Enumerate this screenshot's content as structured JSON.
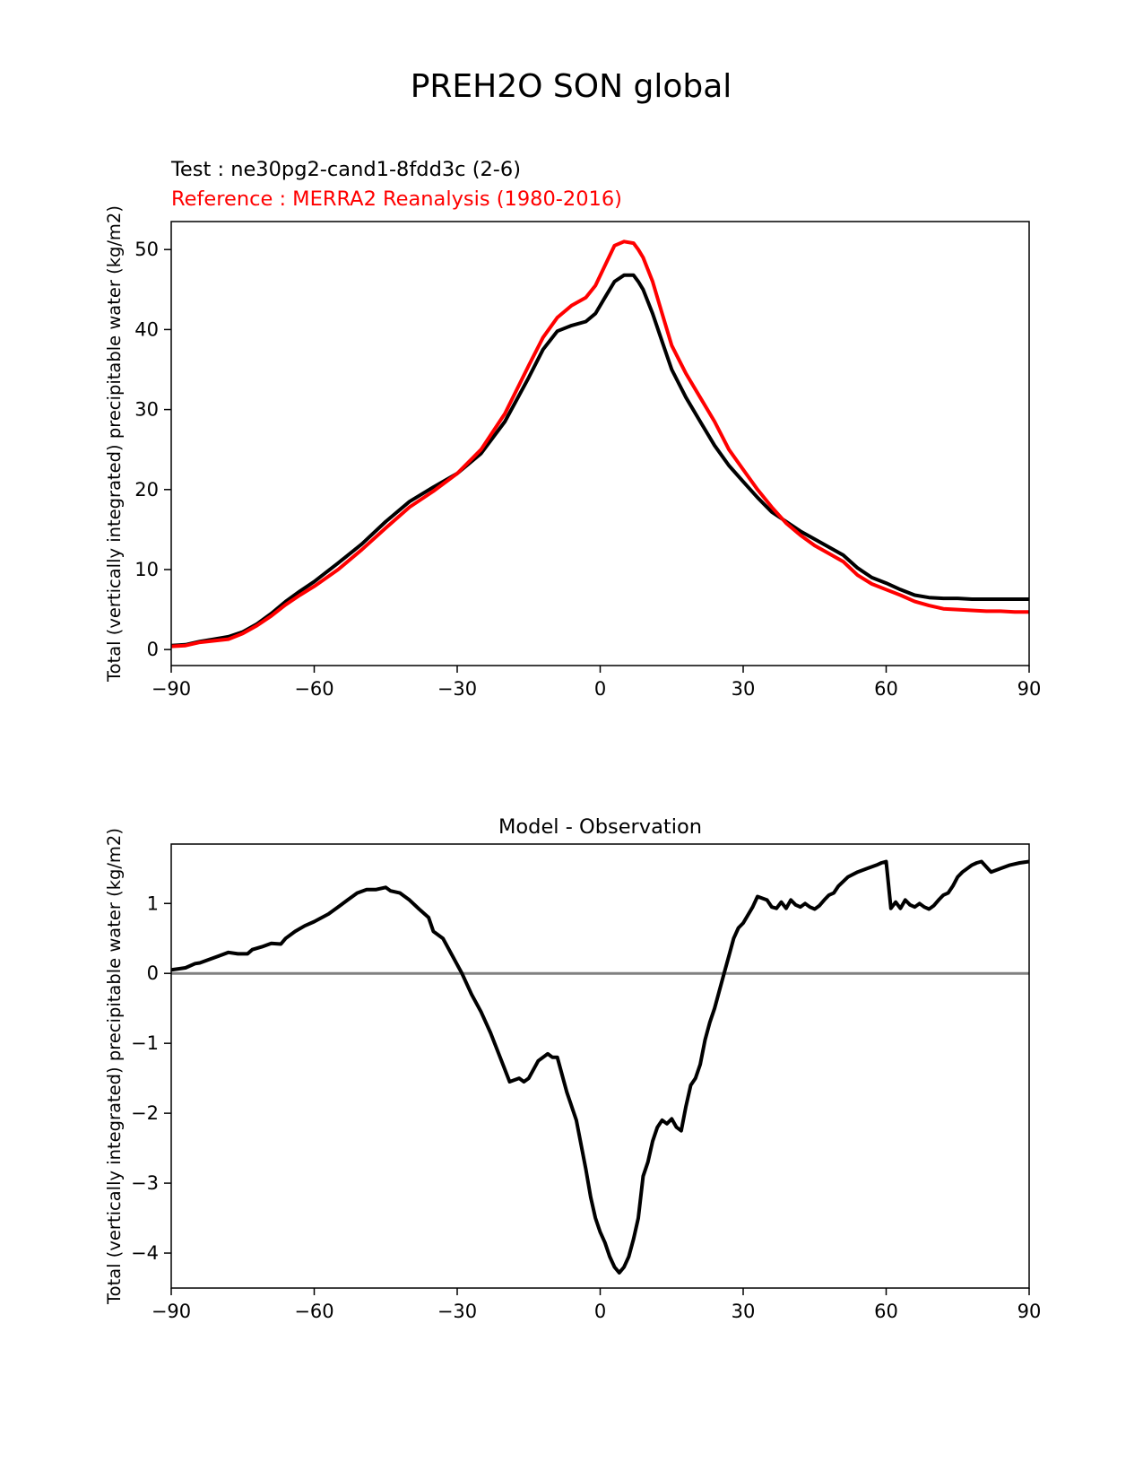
{
  "figure": {
    "title": "PREH2O SON global"
  },
  "chart_data": [
    {
      "type": "line",
      "panel": "top",
      "test_label": "Test : ne30pg2-cand1-8fdd3c (2-6)",
      "reference_label": "Reference : MERRA2 Reanalysis (1980-2016)",
      "xlabel": "",
      "ylabel": "Total (vertically integrated) precipitable water (kg/m2)",
      "xlim": [
        -90,
        90
      ],
      "ylim": [
        -2,
        53.5
      ],
      "xticks": [
        -90,
        -60,
        -30,
        0,
        30,
        60,
        90
      ],
      "xtick_labels": [
        "−90",
        "−60",
        "−30",
        "0",
        "30",
        "60",
        "90"
      ],
      "yticks": [
        0,
        10,
        20,
        30,
        40,
        50
      ],
      "ytick_labels": [
        "0",
        "10",
        "20",
        "30",
        "40",
        "50"
      ],
      "series": [
        {
          "name": "Test",
          "color": "#000000",
          "x": [
            -90,
            -87,
            -84,
            -81,
            -78,
            -75,
            -72,
            -69,
            -66,
            -63,
            -60,
            -55,
            -50,
            -45,
            -40,
            -35,
            -30,
            -25,
            -20,
            -15,
            -12,
            -9,
            -6,
            -3,
            -1,
            1,
            3,
            5,
            7,
            8,
            9,
            11,
            13,
            15,
            18,
            21,
            24,
            27,
            30,
            33,
            36,
            39,
            42,
            45,
            48,
            51,
            54,
            57,
            60,
            63,
            66,
            69,
            72,
            75,
            78,
            81,
            84,
            87,
            90
          ],
          "y": [
            0.5,
            0.6,
            1.0,
            1.3,
            1.6,
            2.2,
            3.2,
            4.5,
            6.0,
            7.3,
            8.5,
            10.8,
            13.2,
            16.0,
            18.5,
            20.3,
            22.0,
            24.5,
            28.5,
            34.0,
            37.5,
            39.8,
            40.5,
            41.0,
            42.0,
            44.0,
            46.0,
            46.8,
            46.8,
            46.0,
            45.0,
            42.0,
            38.5,
            35.0,
            31.5,
            28.5,
            25.5,
            23.0,
            21.0,
            19.0,
            17.2,
            16.0,
            14.8,
            13.8,
            12.8,
            11.8,
            10.2,
            9.0,
            8.3,
            7.5,
            6.8,
            6.5,
            6.4,
            6.4,
            6.3,
            6.3,
            6.3,
            6.3,
            6.3
          ]
        },
        {
          "name": "Reference",
          "color": "#ff0000",
          "x": [
            -90,
            -87,
            -84,
            -81,
            -78,
            -75,
            -72,
            -69,
            -66,
            -63,
            -60,
            -55,
            -50,
            -45,
            -40,
            -35,
            -30,
            -25,
            -20,
            -15,
            -12,
            -9,
            -6,
            -3,
            -1,
            1,
            3,
            5,
            7,
            8,
            9,
            11,
            13,
            15,
            18,
            21,
            24,
            27,
            30,
            33,
            36,
            39,
            42,
            45,
            48,
            51,
            54,
            57,
            60,
            63,
            66,
            69,
            72,
            75,
            78,
            81,
            84,
            87,
            90
          ],
          "y": [
            0.4,
            0.5,
            0.9,
            1.1,
            1.3,
            2.0,
            3.0,
            4.2,
            5.6,
            6.8,
            7.9,
            10.0,
            12.5,
            15.2,
            17.8,
            19.8,
            22.0,
            25.0,
            29.5,
            35.5,
            39.0,
            41.5,
            43.0,
            44.0,
            45.5,
            48.0,
            50.5,
            51.0,
            50.8,
            50.0,
            49.0,
            46.0,
            42.0,
            38.0,
            34.5,
            31.5,
            28.5,
            25.0,
            22.5,
            20.0,
            17.8,
            15.8,
            14.3,
            13.0,
            12.0,
            11.0,
            9.3,
            8.2,
            7.5,
            6.8,
            6.0,
            5.5,
            5.1,
            5.0,
            4.9,
            4.8,
            4.8,
            4.7,
            4.7
          ]
        }
      ]
    },
    {
      "type": "line",
      "panel": "bottom",
      "title": "Model - Observation",
      "xlabel": "",
      "ylabel": "Total (vertically integrated) precipitable water (kg/m2)",
      "xlim": [
        -90,
        90
      ],
      "ylim": [
        -4.5,
        1.85
      ],
      "xticks": [
        -90,
        -60,
        -30,
        0,
        30,
        60,
        90
      ],
      "xtick_labels": [
        "−90",
        "−60",
        "−30",
        "0",
        "30",
        "60",
        "90"
      ],
      "yticks": [
        -4,
        -3,
        -2,
        -1,
        0,
        1
      ],
      "ytick_labels": [
        "−4",
        "−3",
        "−2",
        "−1",
        "0",
        "1"
      ],
      "zero_line": {
        "value": 0,
        "color": "#808080"
      },
      "series": [
        {
          "name": "Model - Observation",
          "color": "#000000",
          "x": [
            -90,
            -87,
            -85,
            -84,
            -82,
            -80,
            -78,
            -76,
            -74,
            -73,
            -71,
            -69,
            -67,
            -66,
            -64,
            -62,
            -60,
            -57,
            -55,
            -53,
            -51,
            -49,
            -47,
            -45,
            -44,
            -42,
            -40,
            -38,
            -36,
            -35,
            -33,
            -31,
            -29,
            -27,
            -25,
            -23,
            -21,
            -19,
            -17,
            -16,
            -15,
            -13,
            -11,
            -10,
            -9,
            -7,
            -5,
            -3,
            -2,
            -1,
            0,
            1,
            2,
            3,
            4,
            5,
            6,
            7,
            8,
            9,
            10,
            11,
            12,
            13,
            14,
            15,
            16,
            17,
            18,
            19,
            20,
            21,
            22,
            23,
            24,
            25,
            26,
            27,
            28,
            29,
            30,
            32,
            33,
            35,
            36,
            37,
            38,
            39,
            40,
            41,
            42,
            43,
            44,
            45,
            46,
            47,
            48,
            49,
            50,
            52,
            54,
            56,
            58,
            59,
            60,
            61,
            62,
            63,
            64,
            65,
            66,
            67,
            68,
            69,
            70,
            71,
            72,
            73,
            74,
            75,
            76,
            77,
            78,
            79,
            80,
            82,
            84,
            86,
            88,
            90
          ],
          "y": [
            0.05,
            0.08,
            0.14,
            0.15,
            0.2,
            0.25,
            0.3,
            0.28,
            0.28,
            0.34,
            0.38,
            0.43,
            0.42,
            0.5,
            0.6,
            0.68,
            0.74,
            0.85,
            0.95,
            1.05,
            1.15,
            1.2,
            1.2,
            1.23,
            1.18,
            1.15,
            1.05,
            0.92,
            0.8,
            0.6,
            0.5,
            0.25,
            0.0,
            -0.3,
            -0.55,
            -0.85,
            -1.2,
            -1.55,
            -1.5,
            -1.55,
            -1.5,
            -1.25,
            -1.15,
            -1.2,
            -1.2,
            -1.7,
            -2.1,
            -2.8,
            -3.2,
            -3.5,
            -3.7,
            -3.85,
            -4.05,
            -4.2,
            -4.28,
            -4.2,
            -4.05,
            -3.8,
            -3.5,
            -2.9,
            -2.7,
            -2.4,
            -2.2,
            -2.1,
            -2.15,
            -2.08,
            -2.2,
            -2.25,
            -1.9,
            -1.6,
            -1.5,
            -1.3,
            -0.95,
            -0.7,
            -0.5,
            -0.25,
            0.0,
            0.25,
            0.5,
            0.65,
            0.72,
            0.95,
            1.1,
            1.05,
            0.95,
            0.93,
            1.02,
            0.93,
            1.05,
            0.98,
            0.95,
            1.0,
            0.95,
            0.92,
            0.97,
            1.05,
            1.12,
            1.15,
            1.25,
            1.38,
            1.45,
            1.5,
            1.55,
            1.58,
            1.6,
            0.93,
            1.02,
            0.93,
            1.05,
            0.98,
            0.95,
            1.0,
            0.95,
            0.92,
            0.97,
            1.05,
            1.12,
            1.15,
            1.25,
            1.38,
            1.45,
            1.5,
            1.55,
            1.58,
            1.6,
            1.45,
            1.5,
            1.55,
            1.58,
            1.6
          ]
        }
      ]
    }
  ]
}
